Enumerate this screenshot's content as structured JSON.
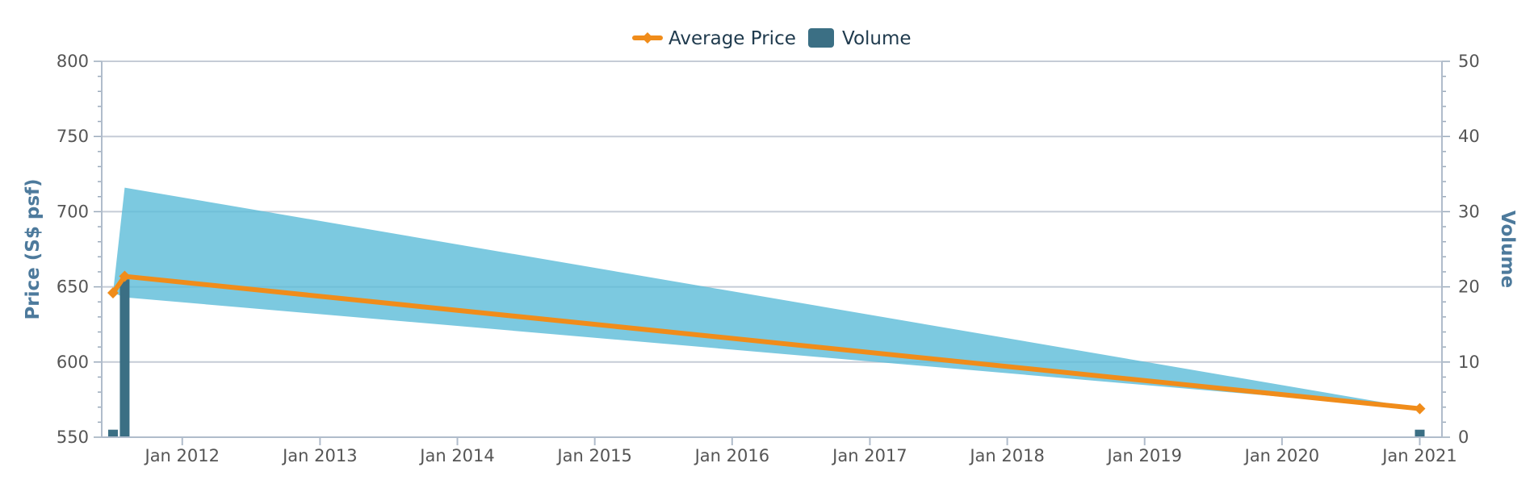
{
  "chart_data": {
    "type": "line",
    "legend": {
      "placement": "top-center",
      "items": [
        {
          "label": "Average Price",
          "color": "#f08c1a",
          "kind": "line"
        },
        {
          "label": "Volume",
          "color": "#3b6f84",
          "kind": "bar"
        }
      ]
    },
    "x_axis": {
      "type": "date",
      "range": [
        "2011-06-01",
        "2021-03-01"
      ],
      "tick_labels": [
        "Jan 2012",
        "Jan 2013",
        "Jan 2014",
        "Jan 2015",
        "Jan 2016",
        "Jan 2017",
        "Jan 2018",
        "Jan 2019",
        "Jan 2020",
        "Jan 2021"
      ],
      "tick_dates": [
        "2012-01-01",
        "2013-01-01",
        "2014-01-01",
        "2015-01-01",
        "2016-01-01",
        "2017-01-01",
        "2018-01-01",
        "2019-01-01",
        "2020-01-01",
        "2021-01-01"
      ]
    },
    "y_axis_left": {
      "title": "Price (S$ psf)",
      "range": [
        550,
        800
      ],
      "tick_labels": [
        "550",
        "600",
        "650",
        "700",
        "750",
        "800"
      ],
      "tick_values": [
        550,
        600,
        650,
        700,
        750,
        800
      ]
    },
    "y_axis_right": {
      "title": "Volume",
      "range": [
        0,
        50
      ],
      "tick_labels": [
        "0",
        "10",
        "20",
        "30",
        "40",
        "50"
      ],
      "tick_values": [
        0,
        10,
        20,
        30,
        40,
        50
      ]
    },
    "grid": true,
    "series": [
      {
        "name": "Average Price",
        "type": "line",
        "color": "#f08c1a",
        "x": [
          "2011-07-01",
          "2011-08-01",
          "2021-01-01"
        ],
        "y": [
          646,
          657,
          569
        ]
      },
      {
        "name": "Price Range",
        "type": "arearange",
        "color": "#5bbcd8",
        "x": [
          "2011-07-01",
          "2011-08-01",
          "2021-01-01"
        ],
        "low": [
          646,
          643,
          569
        ],
        "high": [
          646,
          716,
          569
        ]
      },
      {
        "name": "Volume",
        "type": "bar",
        "color": "#3b6f84",
        "x": [
          "2011-07-01",
          "2011-08-01",
          "2021-01-01"
        ],
        "y": [
          1,
          21,
          1
        ]
      }
    ]
  }
}
